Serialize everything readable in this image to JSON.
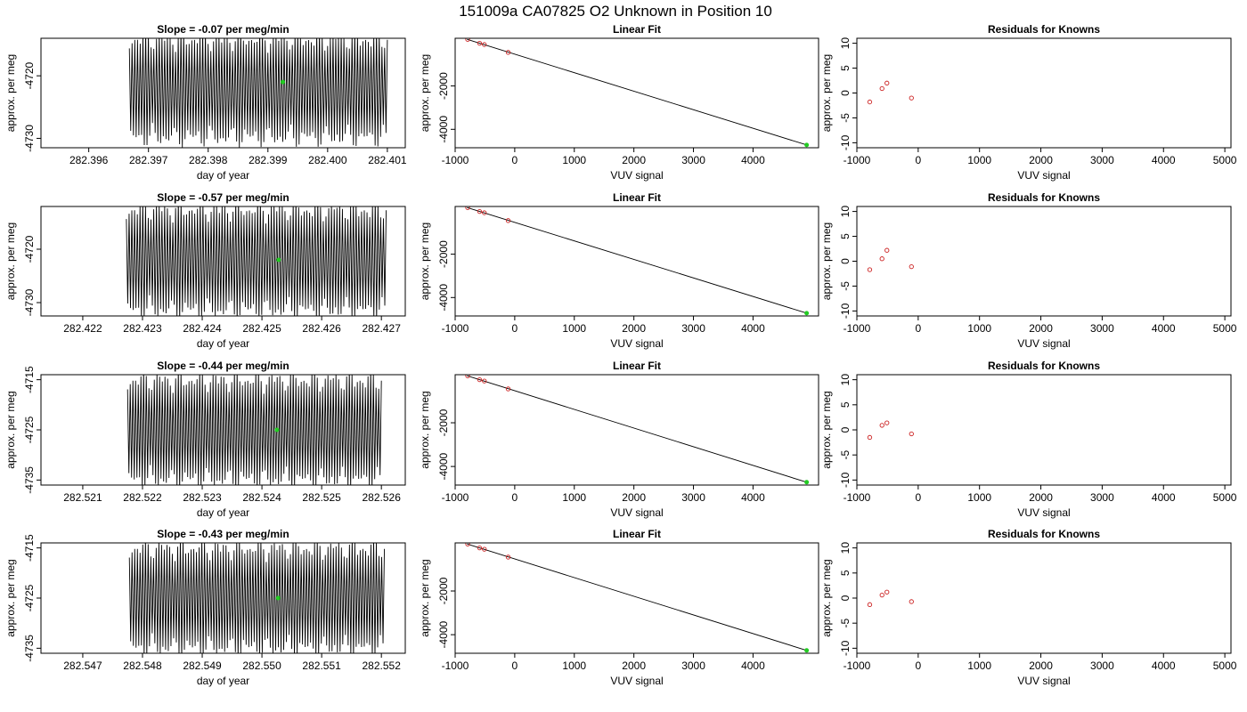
{
  "page_title": "151009a     CA07825   O2 Unknown in Position  10",
  "colors": {
    "trace": "#000000",
    "fit_line": "#000000",
    "known_point": "#cc2222",
    "unknown_point": "#22cc22"
  },
  "chart_data": [
    {
      "type": "line",
      "row": 1,
      "panel": "time-series",
      "title": "Slope =  -0.07  per meg/min",
      "xlabel": "day of year",
      "ylabel": "approx. per meg",
      "xlim": [
        282.3952,
        282.4013
      ],
      "ylim": [
        -4731.5,
        -4714
      ],
      "xticks": [
        282.396,
        282.397,
        282.398,
        282.399,
        282.4,
        282.401
      ],
      "xtick_labels": [
        "282.396",
        "282.397",
        "282.398",
        "282.399",
        "282.400",
        "282.401"
      ],
      "yticks": [
        -4730,
        -4720
      ],
      "ytick_labels": [
        "-4730",
        "-4720"
      ],
      "series": [
        {
          "x_start": 282.39668,
          "x_end": 282.401,
          "center": -4722,
          "amplitude": 7.5,
          "cycles": 95
        }
      ],
      "unknown_marker": {
        "x": 282.39925,
        "y": -4721
      }
    },
    {
      "type": "line",
      "row": 1,
      "panel": "linear-fit",
      "title": "Linear Fit",
      "xlabel": "VUV signal",
      "ylabel": "approx. per meg",
      "xlim": [
        -1000,
        5100
      ],
      "ylim": [
        -4850,
        200
      ],
      "xticks": [
        -1000,
        0,
        1000,
        2000,
        3000,
        4000
      ],
      "xtick_labels": [
        "-1000",
        "0",
        "1000",
        "2000",
        "3000",
        "4000"
      ],
      "yticks": [
        -4000,
        -2000
      ],
      "ytick_labels": [
        "-4000",
        "-2000"
      ],
      "fit_line": {
        "x": [
          -800,
          4900
        ],
        "y": [
          150,
          -4720
        ]
      },
      "knowns": [
        {
          "x": -790,
          "y": 150
        },
        {
          "x": -590,
          "y": -30
        },
        {
          "x": -510,
          "y": -90
        },
        {
          "x": -110,
          "y": -450
        }
      ],
      "unknown": {
        "x": 4900,
        "y": -4720
      }
    },
    {
      "type": "scatter",
      "row": 1,
      "panel": "residuals",
      "title": "Residuals for Knowns",
      "xlabel": "VUV signal",
      "ylabel": "approx. per meg",
      "xlim": [
        -1000,
        5100
      ],
      "ylim": [
        -11,
        11
      ],
      "xticks": [
        -1000,
        0,
        1000,
        2000,
        3000,
        4000,
        5000
      ],
      "xtick_labels": [
        "-1000",
        "0",
        "1000",
        "2000",
        "3000",
        "4000",
        "5000"
      ],
      "yticks": [
        -10,
        -5,
        0,
        5,
        10
      ],
      "ytick_labels": [
        "-10",
        "-5",
        "0",
        "5",
        "10"
      ],
      "points": [
        {
          "x": -790,
          "y": -1.8
        },
        {
          "x": -590,
          "y": 0.9
        },
        {
          "x": -510,
          "y": 2.0
        },
        {
          "x": -110,
          "y": -1.0
        }
      ]
    },
    {
      "type": "line",
      "row": 2,
      "panel": "time-series",
      "title": "Slope =  -0.57  per meg/min",
      "xlabel": "day of year",
      "ylabel": "approx. per meg",
      "xlim": [
        282.4213,
        282.4274
      ],
      "ylim": [
        -4732.5,
        -4712
      ],
      "xticks": [
        282.422,
        282.423,
        282.424,
        282.425,
        282.426,
        282.427
      ],
      "xtick_labels": [
        "282.422",
        "282.423",
        "282.424",
        "282.425",
        "282.426",
        "282.427"
      ],
      "yticks": [
        -4730,
        -4720
      ],
      "ytick_labels": [
        "-4730",
        "-4720"
      ],
      "series": [
        {
          "x_start": 282.42273,
          "x_end": 282.42708,
          "center": -4722,
          "amplitude": 9,
          "cycles": 95
        }
      ],
      "unknown_marker": {
        "x": 282.42528,
        "y": -4722
      }
    },
    {
      "type": "line",
      "row": 2,
      "panel": "linear-fit",
      "title": "Linear Fit",
      "xlabel": "VUV signal",
      "ylabel": "approx. per meg",
      "xlim": [
        -1000,
        5100
      ],
      "ylim": [
        -4850,
        200
      ],
      "xticks": [
        -1000,
        0,
        1000,
        2000,
        3000,
        4000
      ],
      "xtick_labels": [
        "-1000",
        "0",
        "1000",
        "2000",
        "3000",
        "4000"
      ],
      "yticks": [
        -4000,
        -2000
      ],
      "ytick_labels": [
        "-4000",
        "-2000"
      ],
      "fit_line": {
        "x": [
          -800,
          4900
        ],
        "y": [
          150,
          -4720
        ]
      },
      "knowns": [
        {
          "x": -790,
          "y": 150
        },
        {
          "x": -590,
          "y": -30
        },
        {
          "x": -510,
          "y": -90
        },
        {
          "x": -110,
          "y": -450
        }
      ],
      "unknown": {
        "x": 4900,
        "y": -4720
      }
    },
    {
      "type": "scatter",
      "row": 2,
      "panel": "residuals",
      "title": "Residuals for Knowns",
      "xlabel": "VUV signal",
      "ylabel": "approx. per meg",
      "xlim": [
        -1000,
        5100
      ],
      "ylim": [
        -11,
        11
      ],
      "xticks": [
        -1000,
        0,
        1000,
        2000,
        3000,
        4000,
        5000
      ],
      "xtick_labels": [
        "-1000",
        "0",
        "1000",
        "2000",
        "3000",
        "4000",
        "5000"
      ],
      "yticks": [
        -10,
        -5,
        0,
        5,
        10
      ],
      "ytick_labels": [
        "-10",
        "-5",
        "0",
        "5",
        "10"
      ],
      "points": [
        {
          "x": -790,
          "y": -1.7
        },
        {
          "x": -590,
          "y": 0.5
        },
        {
          "x": -510,
          "y": 2.2
        },
        {
          "x": -110,
          "y": -1.1
        }
      ]
    },
    {
      "type": "line",
      "row": 3,
      "panel": "time-series",
      "title": "Slope =  -0.44  per meg/min",
      "xlabel": "day of year",
      "ylabel": "approx. per meg",
      "xlim": [
        282.5203,
        282.5264
      ],
      "ylim": [
        -4736,
        -4714
      ],
      "xticks": [
        282.521,
        282.522,
        282.523,
        282.524,
        282.525,
        282.526
      ],
      "xtick_labels": [
        "282.521",
        "282.522",
        "282.523",
        "282.524",
        "282.525",
        "282.526"
      ],
      "yticks": [
        -4735,
        -4725,
        -4715
      ],
      "ytick_labels": [
        "-4735",
        "-4725",
        "-4715"
      ],
      "series": [
        {
          "x_start": 282.52175,
          "x_end": 282.526,
          "center": -4725,
          "amplitude": 9.5,
          "cycles": 95
        }
      ],
      "unknown_marker": {
        "x": 282.52425,
        "y": -4725
      }
    },
    {
      "type": "line",
      "row": 3,
      "panel": "linear-fit",
      "title": "Linear Fit",
      "xlabel": "VUV signal",
      "ylabel": "approx. per meg",
      "xlim": [
        -1000,
        5100
      ],
      "ylim": [
        -4850,
        200
      ],
      "xticks": [
        -1000,
        0,
        1000,
        2000,
        3000,
        4000
      ],
      "xtick_labels": [
        "-1000",
        "0",
        "1000",
        "2000",
        "3000",
        "4000"
      ],
      "yticks": [
        -4000,
        -2000
      ],
      "ytick_labels": [
        "-4000",
        "-2000"
      ],
      "fit_line": {
        "x": [
          -800,
          4900
        ],
        "y": [
          150,
          -4720
        ]
      },
      "knowns": [
        {
          "x": -790,
          "y": 150
        },
        {
          "x": -590,
          "y": -30
        },
        {
          "x": -510,
          "y": -90
        },
        {
          "x": -110,
          "y": -450
        }
      ],
      "unknown": {
        "x": 4900,
        "y": -4720
      }
    },
    {
      "type": "scatter",
      "row": 3,
      "panel": "residuals",
      "title": "Residuals for Knowns",
      "xlabel": "VUV signal",
      "ylabel": "approx. per meg",
      "xlim": [
        -1000,
        5100
      ],
      "ylim": [
        -11,
        11
      ],
      "xticks": [
        -1000,
        0,
        1000,
        2000,
        3000,
        4000,
        5000
      ],
      "xtick_labels": [
        "-1000",
        "0",
        "1000",
        "2000",
        "3000",
        "4000",
        "5000"
      ],
      "yticks": [
        -10,
        -5,
        0,
        5,
        10
      ],
      "ytick_labels": [
        "-10",
        "-5",
        "0",
        "5",
        "10"
      ],
      "points": [
        {
          "x": -790,
          "y": -1.5
        },
        {
          "x": -590,
          "y": 0.9
        },
        {
          "x": -510,
          "y": 1.4
        },
        {
          "x": -110,
          "y": -0.8
        }
      ]
    },
    {
      "type": "line",
      "row": 4,
      "panel": "time-series",
      "title": "Slope =  -0.43  per meg/min",
      "xlabel": "day of year",
      "ylabel": "approx. per meg",
      "xlim": [
        282.5463,
        282.5524
      ],
      "ylim": [
        -4736,
        -4714
      ],
      "xticks": [
        282.547,
        282.548,
        282.549,
        282.55,
        282.551,
        282.552
      ],
      "xtick_labels": [
        "282.547",
        "282.548",
        "282.549",
        "282.550",
        "282.551",
        "282.552"
      ],
      "yticks": [
        -4735,
        -4725,
        -4715
      ],
      "ytick_labels": [
        "-4735",
        "-4725",
        "-4715"
      ],
      "series": [
        {
          "x_start": 282.54778,
          "x_end": 282.55205,
          "center": -4725,
          "amplitude": 9.5,
          "cycles": 95
        }
      ],
      "unknown_marker": {
        "x": 282.55027,
        "y": -4725
      }
    },
    {
      "type": "line",
      "row": 4,
      "panel": "linear-fit",
      "title": "Linear Fit",
      "xlabel": "VUV signal",
      "ylabel": "approx. per meg",
      "xlim": [
        -1000,
        5100
      ],
      "ylim": [
        -4850,
        200
      ],
      "xticks": [
        -1000,
        0,
        1000,
        2000,
        3000,
        4000
      ],
      "xtick_labels": [
        "-1000",
        "0",
        "1000",
        "2000",
        "3000",
        "4000"
      ],
      "yticks": [
        -4000,
        -2000
      ],
      "ytick_labels": [
        "-4000",
        "-2000"
      ],
      "fit_line": {
        "x": [
          -800,
          4900
        ],
        "y": [
          150,
          -4720
        ]
      },
      "knowns": [
        {
          "x": -790,
          "y": 150
        },
        {
          "x": -590,
          "y": -30
        },
        {
          "x": -510,
          "y": -90
        },
        {
          "x": -110,
          "y": -450
        }
      ],
      "unknown": {
        "x": 4900,
        "y": -4720
      }
    },
    {
      "type": "scatter",
      "row": 4,
      "panel": "residuals",
      "title": "Residuals for Knowns",
      "xlabel": "VUV signal",
      "ylabel": "approx. per meg",
      "xlim": [
        -1000,
        5100
      ],
      "ylim": [
        -11,
        11
      ],
      "xticks": [
        -1000,
        0,
        1000,
        2000,
        3000,
        4000,
        5000
      ],
      "xtick_labels": [
        "-1000",
        "0",
        "1000",
        "2000",
        "3000",
        "4000",
        "5000"
      ],
      "yticks": [
        -10,
        -5,
        0,
        5,
        10
      ],
      "ytick_labels": [
        "-10",
        "-5",
        "0",
        "5",
        "10"
      ],
      "points": [
        {
          "x": -790,
          "y": -1.3
        },
        {
          "x": -590,
          "y": 0.6
        },
        {
          "x": -510,
          "y": 1.2
        },
        {
          "x": -110,
          "y": -0.7
        }
      ]
    }
  ]
}
